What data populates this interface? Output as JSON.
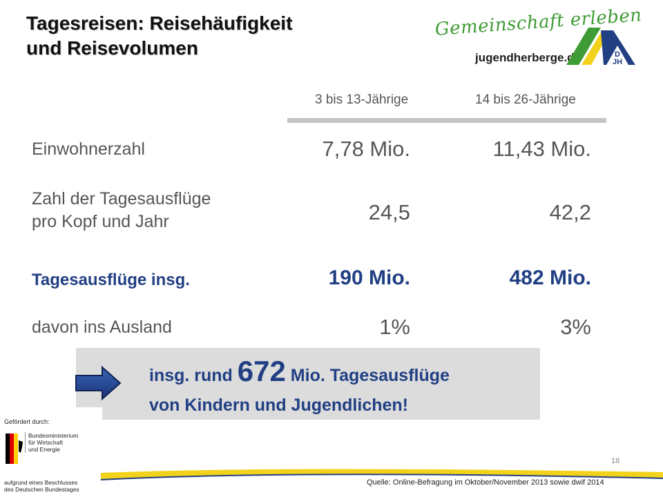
{
  "title": {
    "line1": "Tagesreisen: Reisehäufigkeit",
    "line2": "und Reisevolumen"
  },
  "logo": {
    "slogan": "Gemeinschaft erleben",
    "url": "jugendherberge.de",
    "mark_letters": "DJH",
    "colors": {
      "green": "#3f9b35",
      "yellow": "#f3d21b",
      "blue": "#213f83"
    }
  },
  "table": {
    "headers": [
      "3 bis 13-Jährige",
      "14 bis 26-Jährige"
    ],
    "rows": [
      {
        "label": "Einwohnerzahl",
        "values": [
          "7,78 Mio.",
          "11,43 Mio."
        ],
        "highlight": false
      },
      {
        "label_lines": [
          "Zahl der Tagesausflüge",
          "pro Kopf und Jahr"
        ],
        "values": [
          "24,5",
          "42,2"
        ],
        "highlight": false
      },
      {
        "label": "Tagesausflüge insg.",
        "values": [
          "190 Mio.",
          "482 Mio."
        ],
        "highlight": true
      },
      {
        "label": "davon ins Ausland",
        "values": [
          "1%",
          "3%"
        ],
        "highlight": false
      }
    ]
  },
  "callout": {
    "prefix": "insg. rund ",
    "number": "672",
    "suffix": " Mio. Tagesausflüge",
    "line2": "von Kindern und Jugendlichen!",
    "icon": "arrow-right-icon"
  },
  "funding": {
    "heading": "Gefördert durch:",
    "ministry_lines": [
      "Bundesministerium",
      "für Wirtschaft",
      "und Energie"
    ],
    "resolution_lines": [
      "aufgrund eines Beschlusses",
      "des Deutschen Bundestages"
    ]
  },
  "page_number": "18",
  "source": "Quelle: Online-Befragung im Oktober/November 2013 sowie dwif 2014",
  "accent_color": "#213f83"
}
